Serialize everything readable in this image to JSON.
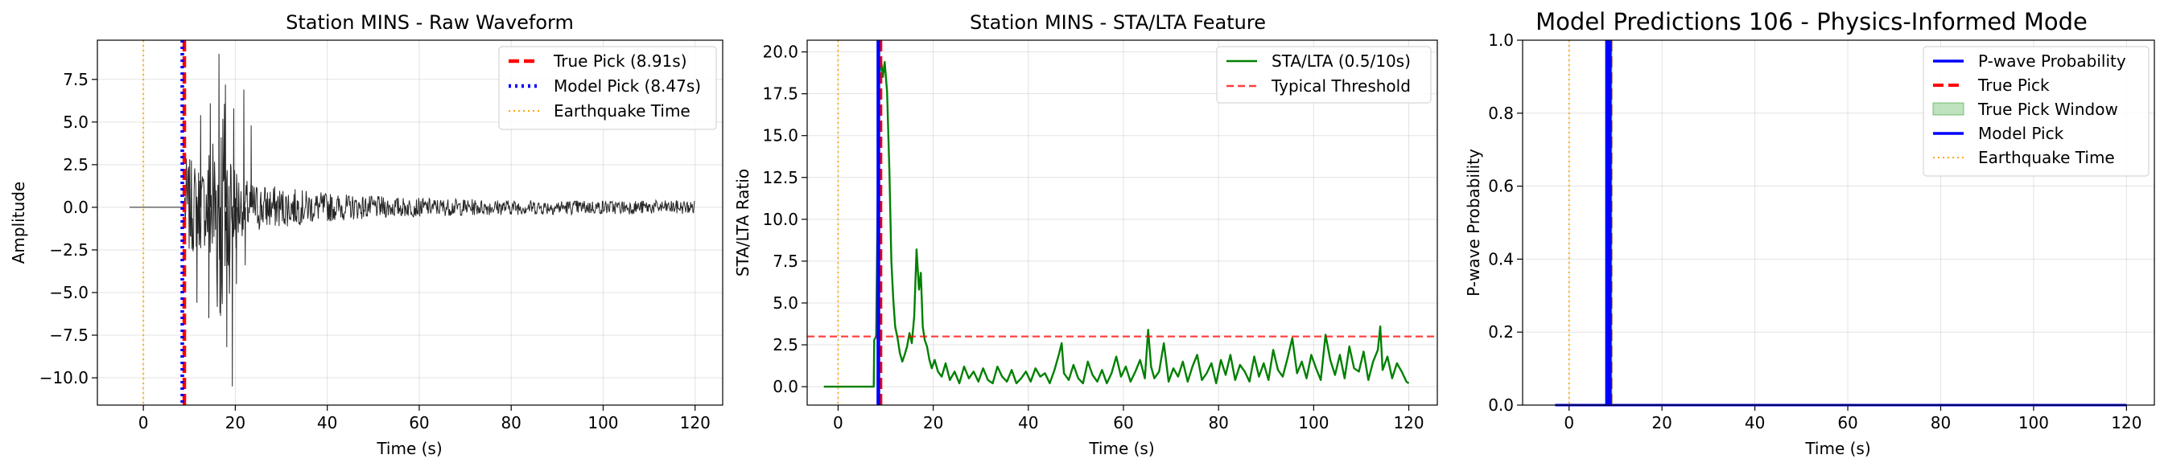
{
  "chart_data": [
    {
      "type": "line",
      "title": "Station MINS - Raw Waveform",
      "xlabel": "Time (s)",
      "ylabel": "Amplitude",
      "xlim": [
        -10,
        126
      ],
      "ylim": [
        -11.6,
        9.8
      ],
      "xticks": [
        0,
        20,
        40,
        60,
        80,
        100,
        120
      ],
      "xticklabels": [
        "0",
        "20",
        "40",
        "60",
        "80",
        "100",
        "120"
      ],
      "yticks": [
        -10,
        -7.5,
        -5,
        -2.5,
        0,
        2.5,
        5,
        7.5
      ],
      "yticklabels": [
        "−10.0",
        "−7.5",
        "−5.0",
        "−2.5",
        "0.0",
        "2.5",
        "5.0",
        "7.5"
      ],
      "grid": true,
      "legend_position": "top-right",
      "series": [
        {
          "kind": "waveform",
          "color": "#000000",
          "x_start": -3,
          "x_end": 120,
          "onset": 8.9,
          "peak_amplitude": 9.0,
          "min_amplitude": -10.5,
          "tail_amplitude": 0.4
        },
        {
          "kind": "vline",
          "name": "True Pick (8.91s)",
          "x": 8.91,
          "color": "#ff0000",
          "style": "dashed"
        },
        {
          "kind": "vline",
          "name": "Model Pick (8.47s)",
          "x": 8.47,
          "color": "#0000ff",
          "style": "dotted"
        },
        {
          "kind": "vline",
          "name": "Earthquake Time",
          "x": 0,
          "color": "#ffa500",
          "style": "dotted-thin"
        }
      ]
    },
    {
      "type": "line",
      "title": "Station MINS - STA/LTA Feature",
      "xlabel": "Time (s)",
      "ylabel": "STA/LTA Ratio",
      "xlim": [
        -6.5,
        126
      ],
      "ylim": [
        -1.1,
        20.7
      ],
      "xticks": [
        0,
        20,
        40,
        60,
        80,
        100,
        120
      ],
      "xticklabels": [
        "0",
        "20",
        "40",
        "60",
        "80",
        "100",
        "120"
      ],
      "yticks": [
        0,
        2.5,
        5,
        7.5,
        10,
        12.5,
        15,
        17.5,
        20
      ],
      "yticklabels": [
        "0.0",
        "2.5",
        "5.0",
        "7.5",
        "10.0",
        "12.5",
        "15.0",
        "17.5",
        "20.0"
      ],
      "grid": true,
      "legend_position": "top-right",
      "series": [
        {
          "kind": "line",
          "name": "STA/LTA (0.5/10s)",
          "color": "#008000",
          "x": [
            -3,
            7.5,
            7.6,
            8.0,
            8.6,
            9.0,
            9.4,
            9.8,
            10.3,
            10.8,
            11.2,
            11.6,
            12.0,
            12.5,
            13.0,
            13.5,
            14.0,
            14.5,
            15.0,
            15.5,
            16.0,
            16.5,
            17.0,
            17.4,
            17.8,
            18.2,
            18.7,
            19.2,
            19.7,
            20.3,
            21.0,
            21.8,
            22.6,
            23.5,
            24.5,
            25.5,
            26.5,
            27.5,
            28.5,
            29.5,
            30.5,
            31.5,
            32.5,
            33.5,
            34.5,
            35.5,
            36.5,
            37.5,
            38.5,
            39.5,
            40.5,
            41.5,
            42.5,
            43.5,
            44.5,
            45.5,
            46.5,
            47.0,
            47.5,
            48.5,
            49.5,
            50.5,
            51.5,
            52.5,
            53.5,
            54.5,
            55.5,
            56.5,
            57.5,
            58.5,
            59.5,
            60.5,
            61.5,
            62.5,
            63.5,
            64.5,
            65.2,
            65.8,
            66.5,
            67.5,
            68.5,
            69.5,
            70.5,
            71.5,
            72.5,
            73.5,
            74.5,
            75.5,
            76.5,
            77.5,
            78.5,
            79.5,
            80.5,
            81.5,
            82.5,
            83.5,
            84.5,
            85.5,
            86.5,
            87.5,
            88.5,
            89.5,
            90.5,
            91.5,
            92.5,
            93.5,
            94.5,
            95.5,
            96.5,
            97.5,
            98.5,
            99.5,
            100.5,
            101.5,
            102.5,
            103.5,
            104.5,
            105.5,
            106.5,
            107.5,
            108.5,
            109.5,
            110.5,
            111.5,
            112.5,
            113.5,
            114.0,
            114.5,
            115.5,
            116.5,
            117.5,
            118.5,
            119.5,
            120.0
          ],
          "y": [
            0,
            0,
            2.8,
            3.0,
            18.2,
            19.6,
            18.5,
            19.4,
            17.6,
            12.8,
            7.5,
            5.2,
            3.6,
            2.9,
            2.0,
            1.5,
            1.9,
            2.4,
            3.2,
            2.6,
            4.2,
            8.2,
            5.8,
            6.8,
            3.6,
            2.8,
            2.4,
            1.6,
            1.1,
            1.6,
            0.9,
            0.6,
            1.4,
            0.4,
            0.9,
            0.2,
            1.2,
            0.5,
            0.9,
            0.3,
            1.1,
            0.4,
            0.2,
            1.2,
            0.6,
            0.3,
            1.0,
            0.2,
            0.5,
            0.9,
            0.3,
            1.1,
            0.6,
            0.8,
            0.2,
            1.0,
            2.0,
            2.6,
            0.8,
            0.4,
            1.3,
            0.5,
            0.2,
            1.5,
            0.7,
            0.3,
            1.0,
            0.2,
            0.8,
            1.8,
            0.6,
            1.2,
            0.3,
            0.9,
            1.6,
            0.5,
            3.4,
            1.2,
            0.5,
            0.9,
            2.6,
            0.3,
            1.1,
            0.6,
            1.5,
            0.3,
            1.2,
            1.9,
            0.4,
            0.8,
            1.4,
            0.2,
            1.6,
            0.7,
            1.9,
            0.4,
            1.3,
            0.9,
            0.3,
            1.8,
            0.6,
            1.4,
            0.4,
            2.2,
            1.0,
            0.6,
            1.7,
            2.9,
            0.8,
            1.5,
            0.5,
            1.9,
            1.1,
            0.4,
            3.1,
            1.6,
            0.7,
            1.9,
            0.5,
            2.4,
            1.1,
            0.9,
            2.1,
            0.4,
            1.5,
            2.2,
            3.6,
            1.0,
            1.8,
            0.5,
            1.4,
            0.9,
            0.3,
            0.2
          ]
        },
        {
          "kind": "hline",
          "name": "Typical Threshold",
          "y": 3.0,
          "color": "#ff0000",
          "style": "dashed"
        },
        {
          "kind": "vline",
          "x": 8.91,
          "color": "#ff0000",
          "style": "dashed"
        },
        {
          "kind": "vline",
          "x": 8.47,
          "color": "#0000ff",
          "style": "solid"
        },
        {
          "kind": "vline",
          "x": 0,
          "color": "#ffa500",
          "style": "dotted-thin"
        }
      ]
    },
    {
      "type": "line",
      "title": "Model Predictions 106 - Physics-Informed Mode",
      "xlabel": "Time (s)",
      "ylabel": "P-wave Probability",
      "xlim": [
        -10,
        126
      ],
      "ylim": [
        0,
        1
      ],
      "xticks": [
        0,
        20,
        40,
        60,
        80,
        100,
        120
      ],
      "xticklabels": [
        "0",
        "20",
        "40",
        "60",
        "80",
        "100",
        "120"
      ],
      "yticks": [
        0,
        0.2,
        0.4,
        0.6,
        0.8,
        1.0
      ],
      "yticklabels": [
        "0.0",
        "0.2",
        "0.4",
        "0.6",
        "0.8",
        "1.0"
      ],
      "grid": true,
      "legend_position": "top-right",
      "series": [
        {
          "kind": "line",
          "name": "P-wave Probability",
          "color": "#0000ff",
          "x": [
            -3,
            120
          ],
          "y": [
            0,
            0
          ]
        },
        {
          "kind": "vline",
          "name": "True Pick",
          "x": 8.91,
          "color": "#ff0000",
          "style": "dashed"
        },
        {
          "kind": "span",
          "name": "True Pick Window",
          "x0": 8.41,
          "x1": 9.41,
          "color": "#2ca02c"
        },
        {
          "kind": "vline",
          "name": "Model Pick",
          "x": 8.47,
          "color": "#0000ff",
          "style": "solid"
        },
        {
          "kind": "vline",
          "name": "Earthquake Time",
          "x": 0,
          "color": "#ffa500",
          "style": "dotted-thin"
        }
      ]
    }
  ]
}
